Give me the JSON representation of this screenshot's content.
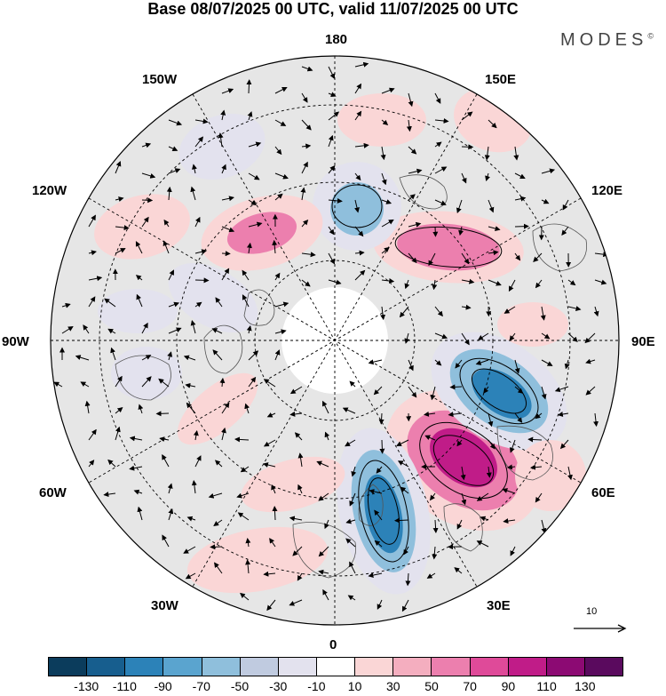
{
  "title": "Base 08/07/2025 00 UTC, valid 11/07/2025 00 UTC",
  "brand": "MODES",
  "brand_mark": "©",
  "longitude_labels": {
    "top": "180",
    "top_right": "150E",
    "right_upper": "120E",
    "right": "90E",
    "right_lower": "60E",
    "bottom_right": "30E",
    "bottom": "0",
    "bottom_left": "30W",
    "left_lower": "60W",
    "left": "90W",
    "left_upper": "120W",
    "top_left": "150W"
  },
  "reference_vector_label": "10",
  "colorbar": {
    "colors": [
      "#0b3c5c",
      "#175e8e",
      "#2c82b8",
      "#5aa4cf",
      "#8fbfdc",
      "#c0cbe0",
      "#e3e2ee",
      "#ffffff",
      "#fad6d6",
      "#f4aebf",
      "#ec7fae",
      "#df4a99",
      "#c01c88",
      "#8c0a73",
      "#5a0a5e"
    ],
    "tick_labels": [
      "-130",
      "-110",
      "-90",
      "-70",
      "-50",
      "-30",
      "-10",
      "10",
      "30",
      "50",
      "70",
      "90",
      "110",
      "130"
    ]
  },
  "anomaly_fill_colors": {
    "strong_positive": "#c01c88",
    "positive": "#ec7fae",
    "weak_positive": "#fad6d6",
    "strong_negative": "#2c82b8",
    "negative": "#8fbfdc",
    "weak_negative": "#e3e2ee",
    "land": "#e6e6e6"
  }
}
